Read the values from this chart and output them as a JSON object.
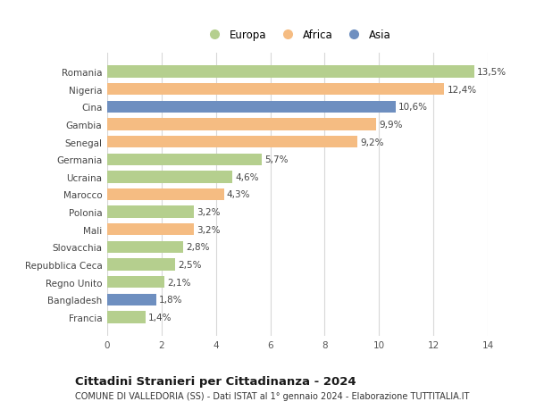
{
  "countries": [
    "Francia",
    "Bangladesh",
    "Regno Unito",
    "Repubblica Ceca",
    "Slovacchia",
    "Mali",
    "Polonia",
    "Marocco",
    "Ucraina",
    "Germania",
    "Senegal",
    "Gambia",
    "Cina",
    "Nigeria",
    "Romania"
  ],
  "values": [
    1.4,
    1.8,
    2.1,
    2.5,
    2.8,
    3.2,
    3.2,
    4.3,
    4.6,
    5.7,
    9.2,
    9.9,
    10.6,
    12.4,
    13.5
  ],
  "continents": [
    "Europa",
    "Asia",
    "Europa",
    "Europa",
    "Europa",
    "Africa",
    "Europa",
    "Africa",
    "Europa",
    "Europa",
    "Africa",
    "Africa",
    "Asia",
    "Africa",
    "Europa"
  ],
  "colors": {
    "Europa": "#b5cf8e",
    "Africa": "#f5bc82",
    "Asia": "#6e8fc0"
  },
  "title": "Cittadini Stranieri per Cittadinanza - 2024",
  "subtitle": "COMUNE DI VALLEDORIA (SS) - Dati ISTAT al 1° gennaio 2024 - Elaborazione TUTTITALIA.IT",
  "xlim": [
    0,
    14
  ],
  "xticks": [
    0,
    2,
    4,
    6,
    8,
    10,
    12,
    14
  ],
  "background_color": "#ffffff",
  "grid_color": "#d8d8d8",
  "bar_height": 0.68,
  "label_fontsize": 7.5,
  "title_fontsize": 9.5,
  "subtitle_fontsize": 7.0,
  "ytick_fontsize": 7.5,
  "xtick_fontsize": 7.5,
  "legend_fontsize": 8.5
}
